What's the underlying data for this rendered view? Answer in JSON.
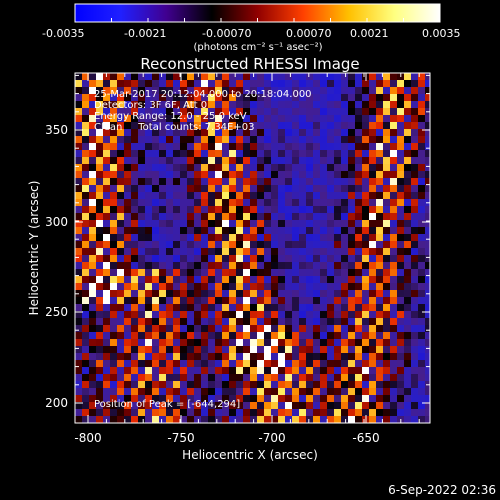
{
  "colorbar": {
    "ticks": [
      "-0.0035",
      "-0.0021",
      "-0.00070",
      "0.00070",
      "0.0021",
      "0.0035"
    ],
    "unit_label": "(photons cm⁻² s⁻¹ asec⁻²)",
    "stops": [
      "#0000ff",
      "#2020ff",
      "#400090",
      "#000000",
      "#900000",
      "#ff4000",
      "#ffc000",
      "#ffff80",
      "#ffffff"
    ]
  },
  "plot": {
    "title": "Reconstructed RHESSI Image",
    "info_lines": [
      "25-Mar-2017 20:12:04.000 to 20:18:04.000",
      "Detectors: 3F 6F, Att 0",
      "Energy Range: 12.0 - 25.0 keV",
      "Clean     Total counts: 7.34E+03"
    ],
    "peak_label": "Position of Peak = [-644,294]",
    "xlabel": "Heliocentric X (arcsec)",
    "ylabel": "Heliocentric Y (arcsec)",
    "x_ticks": [
      "-800",
      "-750",
      "-700",
      "-650"
    ],
    "y_ticks": [
      "200",
      "250",
      "300",
      "350"
    ]
  },
  "footer": {
    "date_label": "6-Sep-2022 02:36"
  }
}
